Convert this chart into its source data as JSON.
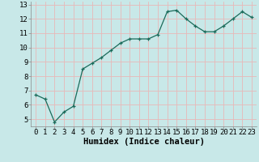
{
  "x": [
    0,
    1,
    2,
    3,
    4,
    5,
    6,
    7,
    8,
    9,
    10,
    11,
    12,
    13,
    14,
    15,
    16,
    17,
    18,
    19,
    20,
    21,
    22,
    23
  ],
  "y": [
    6.7,
    6.4,
    4.8,
    5.5,
    5.9,
    8.5,
    8.9,
    9.3,
    9.8,
    10.3,
    10.6,
    10.6,
    10.6,
    10.9,
    12.5,
    12.6,
    12.0,
    11.5,
    11.1,
    11.1,
    11.5,
    12.0,
    12.5,
    12.1
  ],
  "line_color": "#1a6b5a",
  "marker_color": "#1a6b5a",
  "bg_color": "#c8e8e8",
  "grid_color": "#e8b8b8",
  "xlabel": "Humidex (Indice chaleur)",
  "xlabel_fontsize": 7.5,
  "tick_fontsize": 6.5,
  "xlim": [
    -0.5,
    23.5
  ],
  "ylim": [
    4.5,
    13.2
  ],
  "yticks": [
    5,
    6,
    7,
    8,
    9,
    10,
    11,
    12,
    13
  ],
  "xticks": [
    0,
    1,
    2,
    3,
    4,
    5,
    6,
    7,
    8,
    9,
    10,
    11,
    12,
    13,
    14,
    15,
    16,
    17,
    18,
    19,
    20,
    21,
    22,
    23
  ]
}
